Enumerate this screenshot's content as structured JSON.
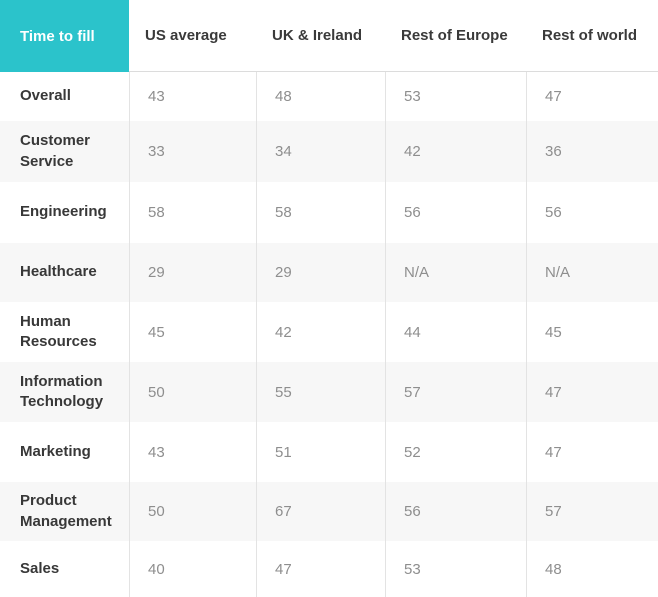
{
  "colors": {
    "accent_teal": "#2bc3cb",
    "header_text": "#3a3a3a",
    "label_text": "#383838",
    "value_text": "#8e8e8e",
    "stripe_bg": "#f7f7f7",
    "divider": "#e3e3e3"
  },
  "table": {
    "corner_label": "Time to fill",
    "columns": [
      "US average",
      "UK & Ireland",
      "Rest of Europe",
      "Rest of world"
    ],
    "rows": [
      {
        "label": "Overall",
        "values": [
          "43",
          "48",
          "53",
          "47"
        ]
      },
      {
        "label": "Customer Service",
        "values": [
          "33",
          "34",
          "42",
          "36"
        ]
      },
      {
        "label": "Engineering",
        "values": [
          "58",
          "58",
          "56",
          "56"
        ]
      },
      {
        "label": "Healthcare",
        "values": [
          "29",
          "29",
          "N/A",
          "N/A"
        ]
      },
      {
        "label": "Human Resources",
        "values": [
          "45",
          "42",
          "44",
          "45"
        ]
      },
      {
        "label": "Information Technology",
        "values": [
          "50",
          "55",
          "57",
          "47"
        ]
      },
      {
        "label": "Marketing",
        "values": [
          "43",
          "51",
          "52",
          "47"
        ]
      },
      {
        "label": "Product Management",
        "values": [
          "50",
          "67",
          "56",
          "57"
        ]
      },
      {
        "label": "Sales",
        "values": [
          "40",
          "47",
          "53",
          "48"
        ]
      }
    ]
  },
  "chart_data": {
    "type": "table",
    "title": "Time to fill",
    "columns": [
      "US average",
      "UK & Ireland",
      "Rest of Europe",
      "Rest of world"
    ],
    "row_labels": [
      "Overall",
      "Customer Service",
      "Engineering",
      "Healthcare",
      "Human Resources",
      "Information Technology",
      "Marketing",
      "Product Management",
      "Sales"
    ],
    "values": [
      [
        43,
        48,
        53,
        47
      ],
      [
        33,
        34,
        42,
        36
      ],
      [
        58,
        58,
        56,
        56
      ],
      [
        29,
        29,
        "N/A",
        "N/A"
      ],
      [
        45,
        42,
        44,
        45
      ],
      [
        50,
        55,
        57,
        47
      ],
      [
        43,
        51,
        52,
        47
      ],
      [
        50,
        67,
        56,
        57
      ],
      [
        40,
        47,
        53,
        48
      ]
    ]
  }
}
